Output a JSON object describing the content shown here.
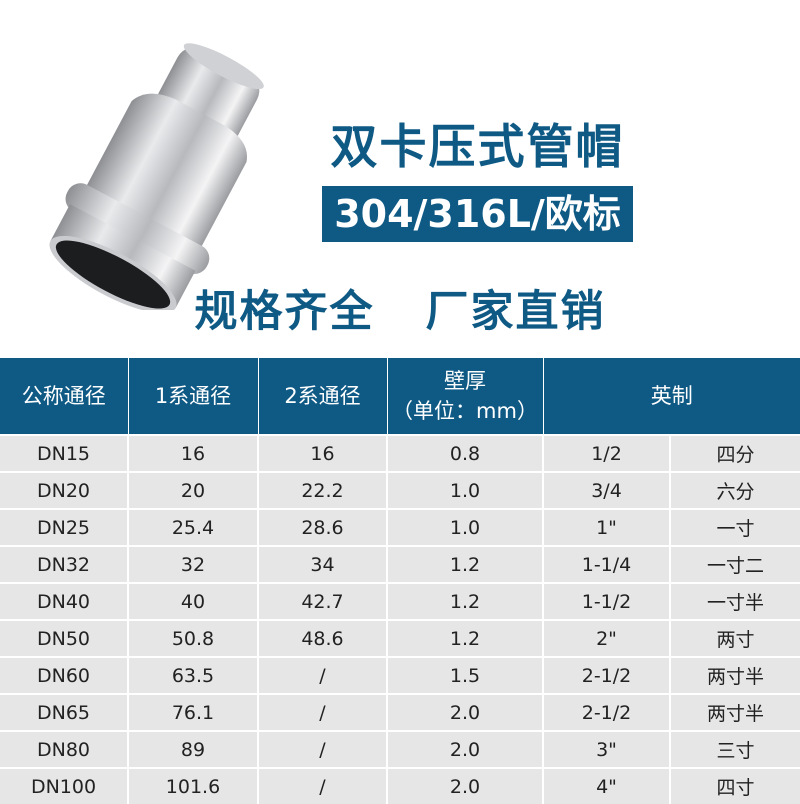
{
  "product": {
    "title": "双卡压式管帽",
    "material": "304/316L/欧标",
    "slogan": "规格齐全   厂家直销"
  },
  "colors": {
    "brand": "#0f5a85",
    "row_bg": "#e6e6e6"
  },
  "table": {
    "headers": [
      "公称通径",
      "1系通径",
      "2系通径",
      "壁厚",
      "（单位：mm）",
      "英制"
    ],
    "rows": [
      [
        "DN15",
        "16",
        "16",
        "0.8",
        "1/2",
        "四分"
      ],
      [
        "DN20",
        "20",
        "22.2",
        "1.0",
        "3/4",
        "六分"
      ],
      [
        "DN25",
        "25.4",
        "28.6",
        "1.0",
        "1\"",
        "一寸"
      ],
      [
        "DN32",
        "32",
        "34",
        "1.2",
        "1-1/4",
        "一寸二"
      ],
      [
        "DN40",
        "40",
        "42.7",
        "1.2",
        "1-1/2",
        "一寸半"
      ],
      [
        "DN50",
        "50.8",
        "48.6",
        "1.2",
        "2\"",
        "两寸"
      ],
      [
        "DN60",
        "63.5",
        "/",
        "1.5",
        "2-1/2",
        "两寸半"
      ],
      [
        "DN65",
        "76.1",
        "/",
        "2.0",
        "2-1/2",
        "两寸半"
      ],
      [
        "DN80",
        "89",
        "/",
        "2.0",
        "3\"",
        "三寸"
      ],
      [
        "DN100",
        "101.6",
        "/",
        "2.0",
        "4\"",
        "四寸"
      ]
    ]
  }
}
